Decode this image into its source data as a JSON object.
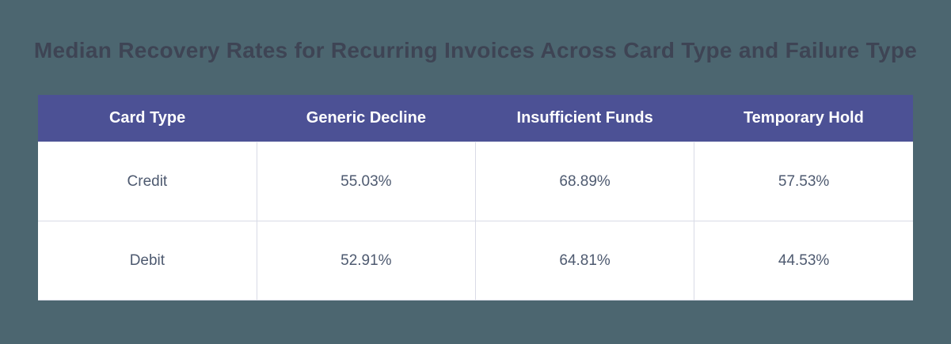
{
  "page": {
    "background_color": "#4C6670",
    "title": "Median Recovery Rates for Recurring Invoices Across Card Type and Failure Type",
    "title_color": "#3E4454"
  },
  "table": {
    "header_bg_color": "#4C5195",
    "header_text_color": "#FFFFFF",
    "body_bg_color": "#FFFFFF",
    "body_text_color": "#4E5A70",
    "border_color": "#D9DBE6",
    "headers": [
      "Card Type",
      "Generic Decline",
      "Insufficient Funds",
      "Temporary Hold"
    ],
    "rows": [
      {
        "card_type": "Credit",
        "generic_decline": "55.03%",
        "insufficient_funds": "68.89%",
        "temporary_hold": "57.53%"
      },
      {
        "card_type": "Debit",
        "generic_decline": "52.91%",
        "insufficient_funds": "64.81%",
        "temporary_hold": "44.53%"
      }
    ]
  },
  "chart_data": {
    "type": "table",
    "title": "Median Recovery Rates for Recurring Invoices Across Card Type and Failure Type",
    "categories": [
      "Generic Decline",
      "Insufficient Funds",
      "Temporary Hold"
    ],
    "series": [
      {
        "name": "Credit",
        "values": [
          55.03,
          68.89,
          57.53
        ]
      },
      {
        "name": "Debit",
        "values": [
          52.91,
          64.81,
          44.53
        ]
      }
    ],
    "value_unit": "%",
    "row_header_label": "Card Type"
  }
}
